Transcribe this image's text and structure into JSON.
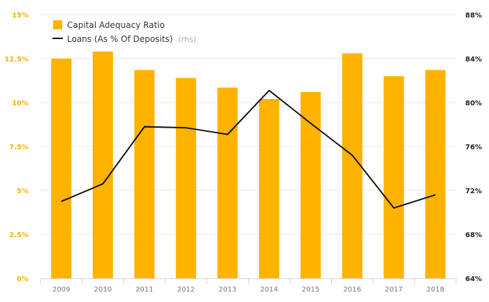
{
  "chart_data": {
    "type": "bar+line",
    "categories": [
      "2009",
      "2010",
      "2011",
      "2012",
      "2013",
      "2014",
      "2015",
      "2016",
      "2017",
      "2018"
    ],
    "series": [
      {
        "name": "Capital Adequacy Ratio",
        "type": "bar",
        "axis": "left",
        "color": "#ffb300",
        "values": [
          12.5,
          12.9,
          11.85,
          11.4,
          10.85,
          10.2,
          10.6,
          12.8,
          11.5,
          11.85
        ]
      },
      {
        "name": "Loans (As % Of Deposits)",
        "name_suffix": "(rhs)",
        "type": "line",
        "axis": "right",
        "color": "#111111",
        "values": [
          71.0,
          72.6,
          77.8,
          77.7,
          77.1,
          81.1,
          78.1,
          75.2,
          70.4,
          71.6
        ]
      }
    ],
    "left_axis": {
      "ylim": [
        0,
        15
      ],
      "ticks": [
        0,
        2.5,
        5,
        7.5,
        10,
        12.5,
        15
      ],
      "tick_labels": [
        "0%",
        "2.5%",
        "5%",
        "7.5%",
        "10%",
        "12.5%",
        "15%"
      ],
      "color": "#f2b400"
    },
    "right_axis": {
      "ylim": [
        64,
        88
      ],
      "ticks": [
        64,
        68,
        72,
        76,
        80,
        84,
        88
      ],
      "tick_labels": [
        "64%",
        "68%",
        "72%",
        "76%",
        "80%",
        "84%",
        "88%"
      ],
      "color": "#222222"
    },
    "grid": "horizontal",
    "legend_position": "top-left"
  }
}
